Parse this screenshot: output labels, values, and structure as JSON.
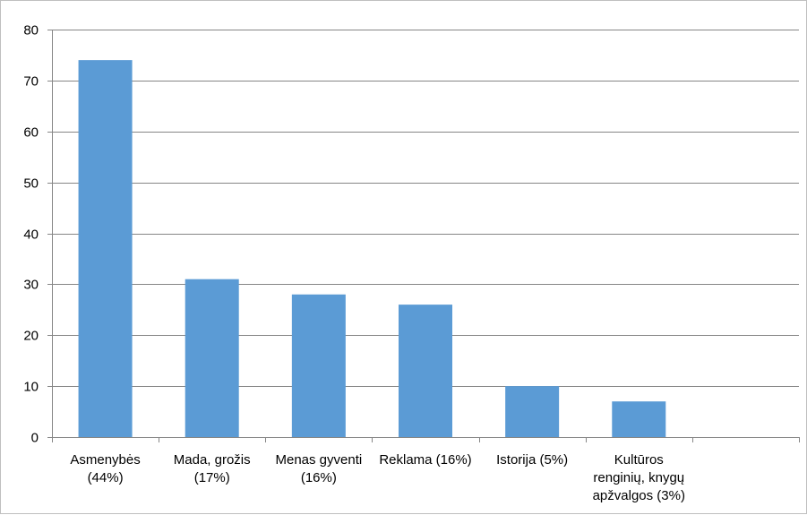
{
  "chart_data": {
    "type": "bar",
    "title": "",
    "xlabel": "",
    "ylabel": "",
    "categories": [
      [
        "Asmenybės",
        "(44%)"
      ],
      [
        "Mada, grožis",
        "(17%)"
      ],
      [
        "Menas gyventi",
        "(16%)"
      ],
      [
        "Reklama (16%)"
      ],
      [
        "Istorija (5%)"
      ],
      [
        "Kultūros",
        "renginių, knygų",
        "apžvalgos (3%)"
      ],
      []
    ],
    "values": [
      74,
      31,
      28,
      26,
      10,
      7,
      null
    ],
    "ylim": [
      0,
      80
    ],
    "yticks": [
      0,
      10,
      20,
      30,
      40,
      50,
      60,
      70,
      80
    ],
    "grid": true,
    "legend": "none",
    "colors": {
      "bar": "#5b9bd5",
      "grid": "#868686",
      "axis": "#868686",
      "frame": "#bfbfbf"
    }
  }
}
